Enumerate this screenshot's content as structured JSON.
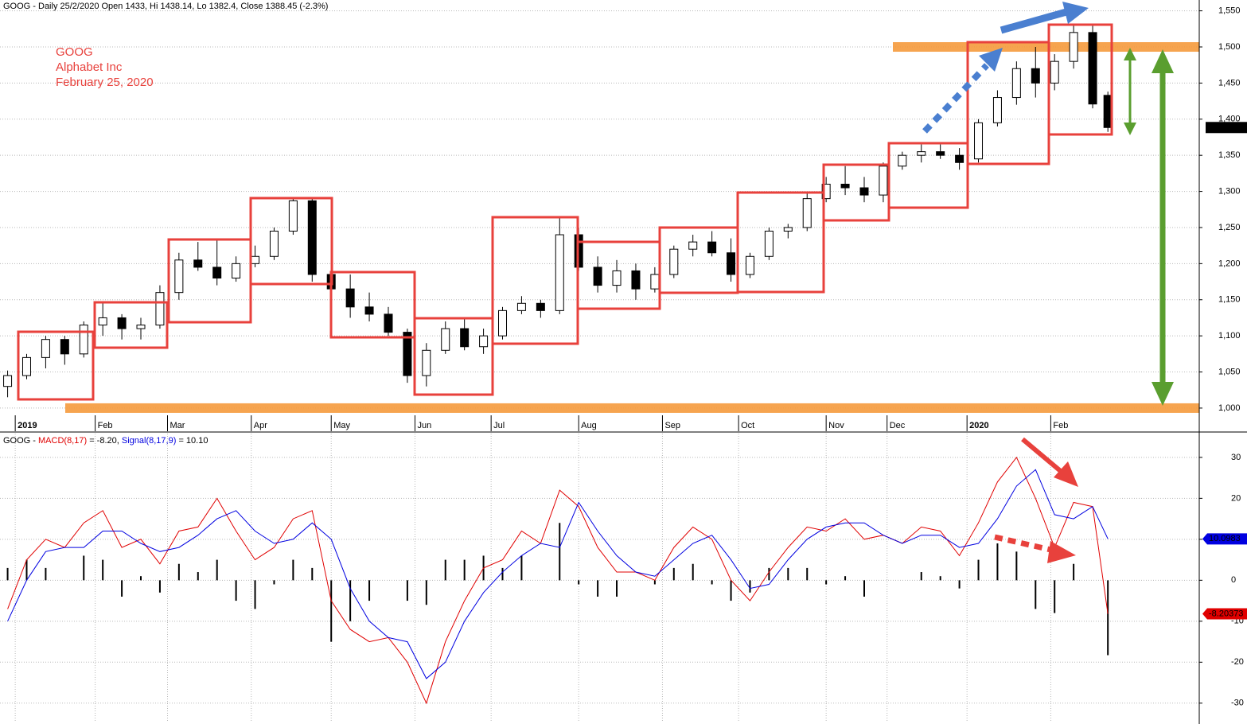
{
  "chart_data": [
    {
      "type": "candlestick",
      "title": "GOOG - Daily 25/2/2020 Open 1433, Hi 1438.14, Lo 1382.4, Close 1388.45 (-2.3%)",
      "annotations": [
        "GOOG",
        "Alphabet Inc",
        "February 25, 2020"
      ],
      "last_label": "1,388.45",
      "x": [
        2,
        7,
        12,
        17,
        22,
        27,
        32,
        37,
        42,
        47,
        52,
        57,
        62,
        67,
        72,
        77,
        82,
        87,
        92,
        97,
        102,
        107,
        112,
        117,
        122,
        127,
        132,
        137,
        142,
        147,
        152,
        157,
        162,
        167,
        172,
        177,
        182,
        187,
        192,
        197,
        202,
        207,
        212,
        217,
        222,
        227,
        232,
        237,
        242,
        247,
        252,
        257,
        262,
        267,
        272,
        277,
        282,
        287,
        291
      ],
      "open": [
        1030,
        1045,
        1070,
        1095,
        1075,
        1115,
        1125,
        1110,
        1115,
        1160,
        1205,
        1195,
        1180,
        1200,
        1210,
        1245,
        1287,
        1185,
        1165,
        1140,
        1130,
        1105,
        1045,
        1080,
        1110,
        1085,
        1100,
        1135,
        1145,
        1135,
        1240,
        1195,
        1170,
        1190,
        1165,
        1185,
        1220,
        1230,
        1215,
        1185,
        1210,
        1245,
        1250,
        1290,
        1310,
        1305,
        1295,
        1335,
        1350,
        1355,
        1350,
        1345,
        1395,
        1430,
        1470,
        1450,
        1480,
        1520,
        1433
      ],
      "high": [
        1052,
        1075,
        1100,
        1100,
        1120,
        1145,
        1130,
        1125,
        1170,
        1215,
        1230,
        1232,
        1210,
        1225,
        1250,
        1290,
        1290,
        1190,
        1185,
        1160,
        1140,
        1110,
        1090,
        1120,
        1125,
        1110,
        1140,
        1155,
        1150,
        1265,
        1250,
        1210,
        1205,
        1200,
        1195,
        1225,
        1240,
        1245,
        1235,
        1215,
        1250,
        1255,
        1300,
        1320,
        1335,
        1320,
        1340,
        1355,
        1365,
        1365,
        1360,
        1400,
        1440,
        1480,
        1500,
        1490,
        1530,
        1532,
        1438.14
      ],
      "low": [
        1015,
        1040,
        1055,
        1060,
        1070,
        1100,
        1095,
        1095,
        1110,
        1150,
        1190,
        1170,
        1175,
        1195,
        1205,
        1240,
        1175,
        1150,
        1125,
        1120,
        1100,
        1035,
        1030,
        1075,
        1080,
        1075,
        1095,
        1130,
        1125,
        1130,
        1190,
        1160,
        1160,
        1150,
        1160,
        1180,
        1210,
        1210,
        1175,
        1180,
        1205,
        1235,
        1245,
        1285,
        1295,
        1285,
        1285,
        1330,
        1340,
        1345,
        1330,
        1340,
        1390,
        1420,
        1430,
        1440,
        1470,
        1415,
        1382.4
      ],
      "close": [
        1045,
        1070,
        1095,
        1075,
        1115,
        1125,
        1110,
        1115,
        1160,
        1205,
        1195,
        1180,
        1200,
        1210,
        1245,
        1287,
        1185,
        1165,
        1140,
        1130,
        1105,
        1045,
        1080,
        1110,
        1085,
        1100,
        1135,
        1145,
        1135,
        1240,
        1195,
        1170,
        1190,
        1165,
        1185,
        1220,
        1230,
        1215,
        1185,
        1210,
        1245,
        1250,
        1290,
        1310,
        1305,
        1295,
        1335,
        1350,
        1355,
        1350,
        1340,
        1395,
        1430,
        1470,
        1450,
        1480,
        1520,
        1421,
        1388.45
      ],
      "levels": [
        1500,
        1000
      ],
      "xlim": [
        0,
        315
      ],
      "xticks": [
        {
          "value": 4,
          "label": "2019"
        },
        {
          "value": 25,
          "label": "Feb"
        },
        {
          "value": 44,
          "label": "Mar"
        },
        {
          "value": 66,
          "label": "Apr"
        },
        {
          "value": 87,
          "label": "May"
        },
        {
          "value": 109,
          "label": "Jun"
        },
        {
          "value": 129,
          "label": "Jul"
        },
        {
          "value": 152,
          "label": "Aug"
        },
        {
          "value": 174,
          "label": "Sep"
        },
        {
          "value": 194,
          "label": "Oct"
        },
        {
          "value": 217,
          "label": "Nov"
        },
        {
          "value": 233,
          "label": "Dec"
        },
        {
          "value": 254,
          "label": "2020"
        },
        {
          "value": 276,
          "label": "Feb"
        }
      ],
      "ylim": [
        990,
        1565
      ],
      "yticks": [
        {
          "value": 1000,
          "label": "1,000"
        },
        {
          "value": 1050,
          "label": "1,050"
        },
        {
          "value": 1100,
          "label": "1,100"
        },
        {
          "value": 1150,
          "label": "1,150"
        },
        {
          "value": 1200,
          "label": "1,200"
        },
        {
          "value": 1250,
          "label": "1,250"
        },
        {
          "value": 1300,
          "label": "1,300"
        },
        {
          "value": 1350,
          "label": "1,350"
        },
        {
          "value": 1400,
          "label": "1,400"
        },
        {
          "value": 1450,
          "label": "1,450"
        },
        {
          "value": 1500,
          "label": "1,500"
        },
        {
          "value": 1550,
          "label": "1,550"
        }
      ],
      "grid": true
    },
    {
      "type": "macd",
      "prefix": "GOOG -",
      "x": [
        2,
        7,
        12,
        17,
        22,
        27,
        32,
        37,
        42,
        47,
        52,
        57,
        62,
        67,
        72,
        77,
        82,
        87,
        92,
        97,
        102,
        107,
        112,
        117,
        122,
        127,
        132,
        137,
        142,
        147,
        152,
        157,
        162,
        167,
        172,
        177,
        182,
        187,
        192,
        197,
        202,
        207,
        212,
        217,
        222,
        227,
        232,
        237,
        242,
        247,
        252,
        257,
        262,
        267,
        272,
        277,
        282,
        287,
        291
      ],
      "series": [
        {
          "name": "MACD(8,17)",
          "color": "#e00000",
          "value_text": "= -8.20,",
          "tag": "-8.20373",
          "values": [
            -7,
            5,
            10,
            8,
            14,
            17,
            8,
            10,
            4,
            12,
            13,
            20,
            12,
            5,
            8,
            15,
            17,
            -5,
            -12,
            -15,
            -14,
            -20,
            -30,
            -15,
            -5,
            3,
            5,
            12,
            9,
            22,
            18,
            8,
            2,
            2,
            0,
            8,
            13,
            10,
            0,
            -5,
            2,
            8,
            13,
            12,
            15,
            10,
            11,
            9,
            13,
            12,
            6,
            14,
            24,
            30,
            20,
            8,
            19,
            18,
            -8.2
          ]
        },
        {
          "name": "Signal(8,17,9)",
          "color": "#0000e0",
          "value_text": "= 10.10",
          "tag": "10.0983",
          "values": [
            -10,
            0,
            7,
            8,
            8,
            12,
            12,
            9,
            7,
            8,
            11,
            15,
            17,
            12,
            9,
            10,
            14,
            10,
            -2,
            -10,
            -14,
            -15,
            -24,
            -20,
            -10,
            -3,
            2,
            6,
            9,
            8,
            19,
            12,
            6,
            2,
            1,
            5,
            9,
            11,
            5,
            -2,
            -1,
            5,
            10,
            13,
            14,
            14,
            11,
            9,
            11,
            11,
            8,
            9,
            15,
            23,
            27,
            16,
            15,
            18,
            10.1
          ]
        }
      ],
      "histogram": [
        3,
        5,
        3,
        0,
        6,
        5,
        -4,
        1,
        -3,
        4,
        2,
        5,
        -5,
        -7,
        -1,
        5,
        3,
        -15,
        -10,
        -5,
        0,
        -5,
        -6,
        5,
        5,
        6,
        3,
        6,
        0,
        14,
        -1,
        -4,
        -4,
        0,
        -1,
        3,
        4,
        -1,
        -5,
        -3,
        3,
        3,
        3,
        -1,
        1,
        -4,
        0,
        0,
        2,
        1,
        -2,
        5,
        9,
        7,
        -7,
        -8,
        4,
        0,
        -18.3
      ],
      "xlim": [
        0,
        315
      ],
      "ylim": [
        -34.7,
        35.8
      ],
      "yticks": [
        -30,
        -20,
        -10,
        0,
        10,
        20,
        30
      ],
      "grid": true
    }
  ]
}
